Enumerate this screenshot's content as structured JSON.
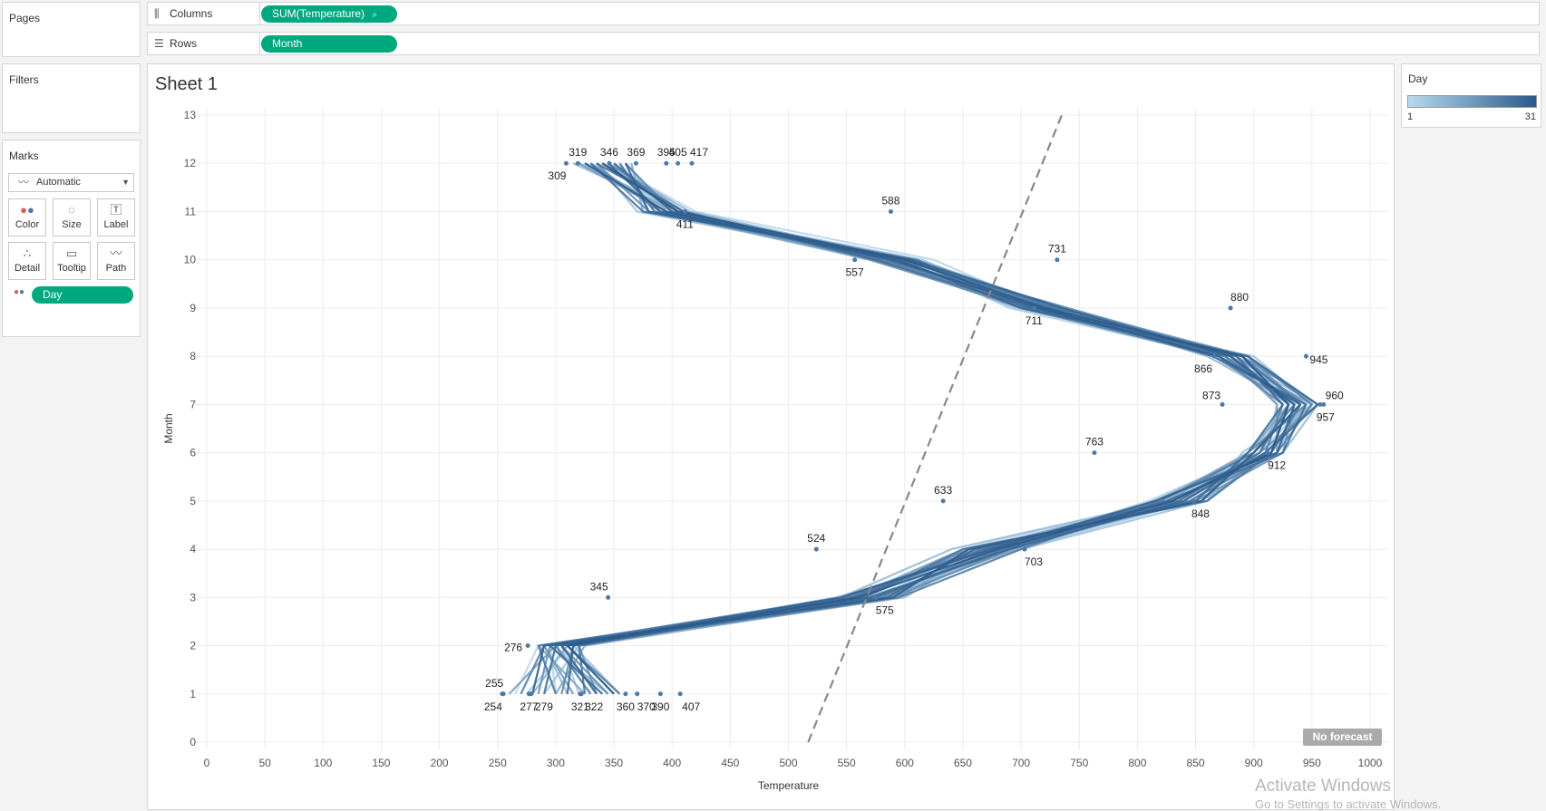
{
  "pages_panel": {
    "title": "Pages"
  },
  "filters_panel": {
    "title": "Filters"
  },
  "marks_panel": {
    "title": "Marks",
    "mark_type": "Automatic",
    "buttons": [
      "Color",
      "Size",
      "Label",
      "Detail",
      "Tooltip",
      "Path"
    ],
    "field_pill": "Day"
  },
  "shelves": {
    "columns_label": "Columns",
    "columns_pill": "SUM(Temperature)",
    "rows_label": "Rows",
    "rows_pill": "Month"
  },
  "legend": {
    "title": "Day",
    "min_label": "1",
    "max_label": "31",
    "color_low": "#b9d9ee",
    "color_high": "#2b5a8a"
  },
  "sheet": {
    "title": "Sheet 1",
    "forecast_badge": "No forecast"
  },
  "watermark": {
    "line1": "Activate Windows",
    "line2": "Go to Settings to activate Windows."
  },
  "chart_data": {
    "type": "line",
    "title": "Sheet 1",
    "xlabel": "Temperature",
    "ylabel": "Month",
    "xlim": [
      0,
      1000
    ],
    "ylim": [
      0,
      13
    ],
    "x_ticks": [
      "0",
      "50",
      "100",
      "150",
      "200",
      "250",
      "300",
      "350",
      "400",
      "450",
      "500",
      "550",
      "600",
      "650",
      "700",
      "750",
      "800",
      "850",
      "900",
      "950",
      "1000"
    ],
    "y_ticks": [
      "0",
      "1",
      "2",
      "3",
      "4",
      "5",
      "6",
      "7",
      "8",
      "9",
      "10",
      "11",
      "12",
      "13"
    ],
    "grid": true,
    "color_by": "Day",
    "series_count": 31,
    "series_month_temperatures": [
      [
        265,
        285,
        585,
        650,
        820,
        920,
        940,
        885,
        720,
        625,
        420,
        345
      ],
      [
        300,
        295,
        575,
        665,
        840,
        895,
        935,
        895,
        705,
        605,
        395,
        330
      ],
      [
        340,
        300,
        555,
        680,
        810,
        905,
        945,
        870,
        690,
        600,
        410,
        320
      ],
      [
        275,
        310,
        540,
        695,
        850,
        900,
        925,
        890,
        740,
        595,
        380,
        355
      ],
      [
        320,
        305,
        590,
        660,
        835,
        915,
        930,
        880,
        715,
        615,
        400,
        340
      ],
      [
        290,
        320,
        565,
        700,
        860,
        890,
        950,
        900,
        695,
        590,
        370,
        335
      ],
      [
        355,
        315,
        600,
        670,
        845,
        910,
        920,
        875,
        735,
        585,
        395,
        360
      ],
      [
        310,
        290,
        545,
        640,
        825,
        925,
        955,
        880,
        700,
        610,
        405,
        315
      ],
      [
        330,
        300,
        580,
        690,
        815,
        900,
        935,
        860,
        725,
        570,
        385,
        350
      ],
      [
        280,
        310,
        560,
        655,
        855,
        920,
        940,
        895,
        710,
        600,
        415,
        345
      ],
      [
        345,
        295,
        550,
        675,
        830,
        905,
        925,
        885,
        730,
        580,
        390,
        330
      ],
      [
        300,
        325,
        595,
        665,
        845,
        915,
        945,
        870,
        705,
        595,
        375,
        365
      ],
      [
        325,
        285,
        570,
        685,
        820,
        895,
        930,
        890,
        720,
        605,
        400,
        325
      ],
      [
        260,
        300,
        555,
        650,
        860,
        910,
        950,
        875,
        715,
        590,
        410,
        340
      ],
      [
        350,
        310,
        585,
        695,
        835,
        920,
        920,
        880,
        700,
        575,
        385,
        355
      ],
      [
        315,
        290,
        565,
        660,
        825,
        900,
        940,
        895,
        735,
        610,
        395,
        320
      ],
      [
        335,
        320,
        575,
        680,
        850,
        925,
        935,
        865,
        710,
        585,
        405,
        350
      ],
      [
        285,
        295,
        545,
        670,
        840,
        905,
        955,
        890,
        725,
        600,
        380,
        335
      ],
      [
        345,
        305,
        590,
        690,
        815,
        915,
        930,
        880,
        705,
        570,
        410,
        345
      ],
      [
        305,
        315,
        560,
        655,
        855,
        895,
        945,
        885,
        740,
        595,
        390,
        330
      ],
      [
        330,
        300,
        580,
        675,
        830,
        910,
        925,
        870,
        700,
        605,
        400,
        360
      ],
      [
        270,
        290,
        550,
        665,
        845,
        920,
        950,
        895,
        720,
        580,
        395,
        325
      ],
      [
        355,
        310,
        595,
        700,
        820,
        900,
        935,
        875,
        715,
        590,
        385,
        355
      ],
      [
        300,
        285,
        565,
        650,
        860,
        915,
        940,
        890,
        730,
        600,
        405,
        340
      ],
      [
        325,
        320,
        575,
        685,
        835,
        905,
        930,
        880,
        705,
        610,
        375,
        330
      ],
      [
        290,
        300,
        555,
        670,
        825,
        925,
        945,
        865,
        725,
        585,
        400,
        350
      ],
      [
        340,
        295,
        585,
        660,
        850,
        895,
        925,
        885,
        710,
        575,
        410,
        335
      ],
      [
        310,
        315,
        570,
        690,
        840,
        910,
        955,
        895,
        700,
        595,
        390,
        345
      ],
      [
        335,
        305,
        545,
        675,
        815,
        920,
        935,
        880,
        735,
        605,
        380,
        360
      ],
      [
        280,
        290,
        590,
        655,
        855,
        900,
        940,
        870,
        715,
        590,
        395,
        325
      ],
      [
        350,
        310,
        560,
        680,
        830,
        915,
        930,
        890,
        720,
        600,
        405,
        340
      ]
    ],
    "point_labels": [
      {
        "x": 319,
        "y": 12,
        "text": "319"
      },
      {
        "x": 309,
        "y": 12,
        "text": "309"
      },
      {
        "x": 346,
        "y": 12,
        "text": "346"
      },
      {
        "x": 369,
        "y": 12,
        "text": "369"
      },
      {
        "x": 395,
        "y": 12,
        "text": "395"
      },
      {
        "x": 405,
        "y": 12,
        "text": "405"
      },
      {
        "x": 417,
        "y": 12,
        "text": "417"
      },
      {
        "x": 411,
        "y": 11,
        "text": "411"
      },
      {
        "x": 588,
        "y": 11,
        "text": "588"
      },
      {
        "x": 731,
        "y": 10,
        "text": "731"
      },
      {
        "x": 557,
        "y": 10,
        "text": "557"
      },
      {
        "x": 711,
        "y": 9,
        "text": "711"
      },
      {
        "x": 880,
        "y": 9,
        "text": "880"
      },
      {
        "x": 945,
        "y": 8,
        "text": "945"
      },
      {
        "x": 866,
        "y": 8,
        "text": "866"
      },
      {
        "x": 873,
        "y": 7,
        "text": "873"
      },
      {
        "x": 960,
        "y": 7,
        "text": "960"
      },
      {
        "x": 957,
        "y": 7,
        "text": "957"
      },
      {
        "x": 763,
        "y": 6,
        "text": "763"
      },
      {
        "x": 912,
        "y": 6,
        "text": "912"
      },
      {
        "x": 633,
        "y": 5,
        "text": "633"
      },
      {
        "x": 848,
        "y": 5,
        "text": "848"
      },
      {
        "x": 524,
        "y": 4,
        "text": "524"
      },
      {
        "x": 703,
        "y": 4,
        "text": "703"
      },
      {
        "x": 345,
        "y": 3,
        "text": "345"
      },
      {
        "x": 575,
        "y": 3,
        "text": "575"
      },
      {
        "x": 276,
        "y": 2,
        "text": "276"
      },
      {
        "x": 255,
        "y": 1,
        "text": "255"
      },
      {
        "x": 254,
        "y": 1,
        "text": "254"
      },
      {
        "x": 277,
        "y": 1,
        "text": "277"
      },
      {
        "x": 279,
        "y": 1,
        "text": "279"
      },
      {
        "x": 321,
        "y": 1,
        "text": "321"
      },
      {
        "x": 322,
        "y": 1,
        "text": "322"
      },
      {
        "x": 360,
        "y": 1,
        "text": "360"
      },
      {
        "x": 370,
        "y": 1,
        "text": "370"
      },
      {
        "x": 390,
        "y": 1,
        "text": "390"
      },
      {
        "x": 407,
        "y": 1,
        "text": "407"
      }
    ],
    "trend_line": {
      "from": [
        517,
        0
      ],
      "to": [
        735,
        13
      ]
    }
  }
}
